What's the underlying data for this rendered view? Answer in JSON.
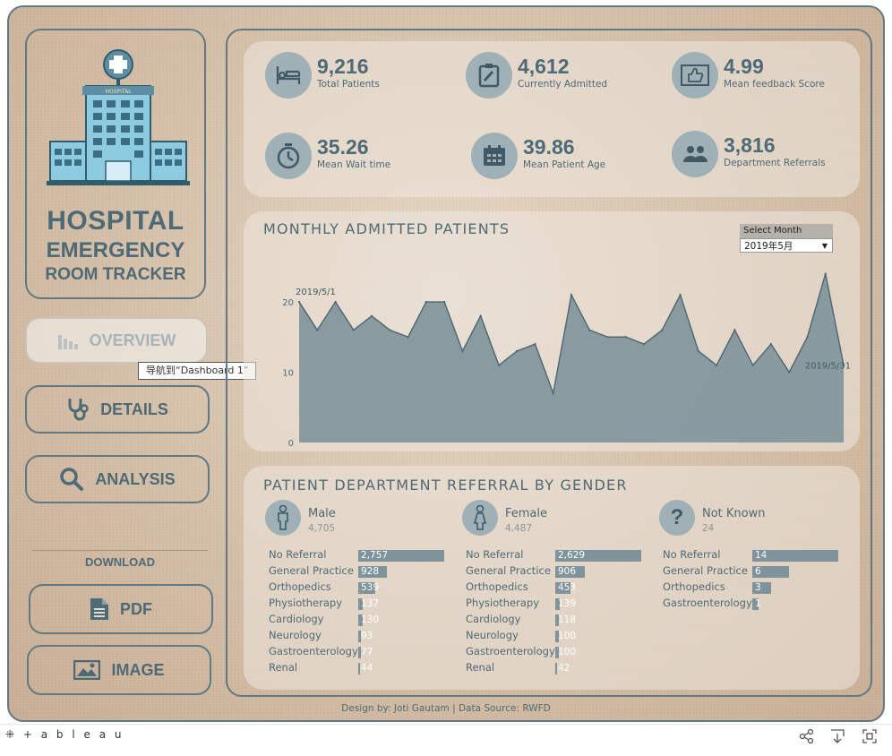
{
  "sidebar": {
    "title_line1": "HOSPITAL",
    "title_line2": "EMERGENCY",
    "title_line3": "ROOM TRACKER",
    "hospital_sign": "HOSPITAL",
    "nav": {
      "overview": "OVERVIEW",
      "details": "DETAILS",
      "analysis": "ANALYSIS"
    },
    "tooltip": "导航到“Dashboard 1”",
    "download_label": "DOWNLOAD",
    "pdf_label": "PDF",
    "image_label": "IMAGE"
  },
  "kpis": [
    {
      "value": "9,216",
      "label": "Total Patients",
      "icon": "hospital-bed-icon"
    },
    {
      "value": "4,612",
      "label": "Currently Admitted",
      "icon": "clipboard-icon"
    },
    {
      "value": "4.99",
      "label": "Mean feedback Score",
      "icon": "thumbs-up-icon"
    },
    {
      "value": "35.26",
      "label": "Mean Wait time",
      "icon": "stopwatch-icon"
    },
    {
      "value": "39.86",
      "label": "Mean Patient Age",
      "icon": "calendar-icon"
    },
    {
      "value": "3,816",
      "label": "Department Referrals",
      "icon": "people-icon"
    }
  ],
  "monthly": {
    "title": "MONTHLY ADMITTED PATIENTS",
    "select_label": "Select Month",
    "select_value": "2019年5月",
    "start_label": "2019/5/1",
    "end_label": "2019/5/31"
  },
  "chart_data": {
    "type": "area",
    "x": [
      "2019/5/1",
      "2019/5/2",
      "2019/5/3",
      "2019/5/4",
      "2019/5/5",
      "2019/5/6",
      "2019/5/7",
      "2019/5/8",
      "2019/5/9",
      "2019/5/10",
      "2019/5/11",
      "2019/5/12",
      "2019/5/13",
      "2019/5/14",
      "2019/5/15",
      "2019/5/16",
      "2019/5/17",
      "2019/5/18",
      "2019/5/19",
      "2019/5/20",
      "2019/5/21",
      "2019/5/22",
      "2019/5/23",
      "2019/5/24",
      "2019/5/25",
      "2019/5/26",
      "2019/5/27",
      "2019/5/28",
      "2019/5/29",
      "2019/5/30",
      "2019/5/31"
    ],
    "values": [
      20,
      16,
      20,
      16,
      18,
      16,
      15,
      20,
      20,
      13,
      18,
      11,
      13,
      14,
      7,
      21,
      16,
      15,
      15,
      14,
      16,
      21,
      13,
      11,
      16,
      11,
      14,
      10,
      15,
      24,
      11
    ],
    "yticks": [
      "0",
      "10",
      "20"
    ],
    "ylim": [
      0,
      26
    ]
  },
  "referrals": {
    "title": "PATIENT DEPARTMENT REFERRAL BY GENDER",
    "max_value": 2757,
    "groups": [
      {
        "name": "Male",
        "count": "4,705",
        "icon": "male-icon",
        "rows": [
          {
            "label": "No Referral",
            "value": 2757,
            "text": "2,757"
          },
          {
            "label": "General Practice",
            "value": 928,
            "text": "928"
          },
          {
            "label": "Orthopedics",
            "value": 539,
            "text": "539"
          },
          {
            "label": "Physiotherapy",
            "value": 137,
            "text": "137"
          },
          {
            "label": "Cardiology",
            "value": 130,
            "text": "130"
          },
          {
            "label": "Neurology",
            "value": 93,
            "text": "93"
          },
          {
            "label": "Gastroenterology",
            "value": 77,
            "text": "77"
          },
          {
            "label": "Renal",
            "value": 44,
            "text": "44"
          }
        ]
      },
      {
        "name": "Female",
        "count": "4,487",
        "icon": "female-icon",
        "rows": [
          {
            "label": "No Referral",
            "value": 2629,
            "text": "2,629"
          },
          {
            "label": "General Practice",
            "value": 906,
            "text": "906"
          },
          {
            "label": "Orthopedics",
            "value": 453,
            "text": "453"
          },
          {
            "label": "Physiotherapy",
            "value": 139,
            "text": "139"
          },
          {
            "label": "Cardiology",
            "value": 118,
            "text": "118"
          },
          {
            "label": "Neurology",
            "value": 100,
            "text": "100"
          },
          {
            "label": "Gastroenterology",
            "value": 100,
            "text": "100"
          },
          {
            "label": "Renal",
            "value": 42,
            "text": "42"
          }
        ]
      },
      {
        "name": "Not Known",
        "count": "24",
        "icon": "question-icon",
        "rows": [
          {
            "label": "No Referral",
            "value": 14,
            "text": "14"
          },
          {
            "label": "General Practice",
            "value": 6,
            "text": "6"
          },
          {
            "label": "Orthopedics",
            "value": 3,
            "text": "3"
          },
          {
            "label": "Gastroenterology",
            "value": 1,
            "text": "1"
          }
        ]
      }
    ]
  },
  "footer": {
    "credit": "Design by: Joti Gautam | Data Source: RWFD",
    "tableau": "+ a b l e a u"
  },
  "colors": {
    "accent": "#5f7a86",
    "area_fill": "#7e939b",
    "icon_circle": "#9fb0b6"
  }
}
